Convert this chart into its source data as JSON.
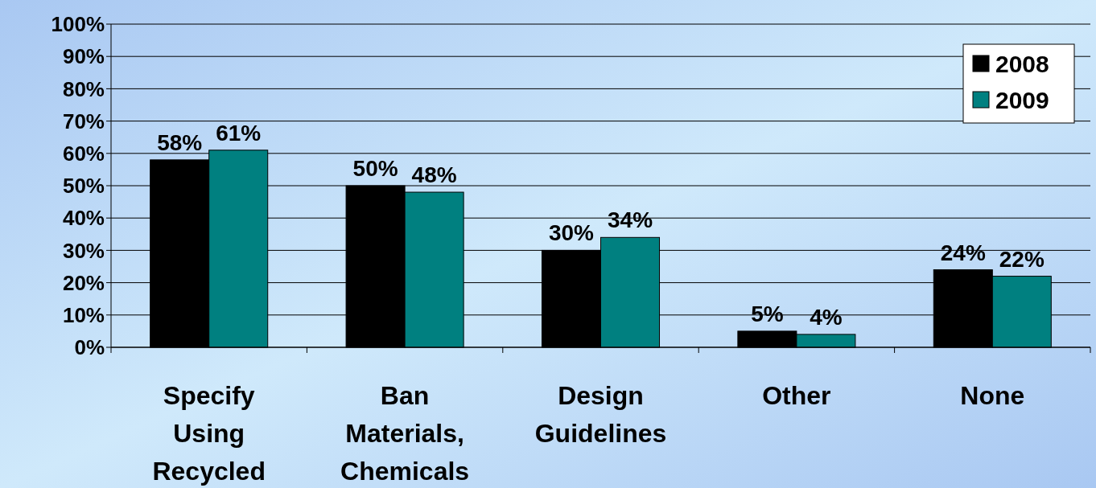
{
  "chart_data": {
    "type": "bar",
    "categories": [
      "Specify Using Recycled",
      "Ban Materials, Chemicals",
      "Design Guidelines",
      "Other",
      "None"
    ],
    "series": [
      {
        "name": "2008",
        "color": "#000000",
        "values": [
          58,
          50,
          30,
          5,
          24
        ]
      },
      {
        "name": "2009",
        "color": "#008080",
        "values": [
          61,
          48,
          34,
          4,
          22
        ]
      }
    ],
    "ylim": [
      0,
      100
    ],
    "yticks": [
      {
        "value": 0,
        "label": "0%"
      },
      {
        "value": 10,
        "label": "10%"
      },
      {
        "value": 20,
        "label": "20%"
      },
      {
        "value": 30,
        "label": "30%"
      },
      {
        "value": 40,
        "label": "40%"
      },
      {
        "value": 50,
        "label": "50%"
      },
      {
        "value": 60,
        "label": "60%"
      },
      {
        "value": 70,
        "label": "70%"
      },
      {
        "value": 80,
        "label": "80%"
      },
      {
        "value": 90,
        "label": "90%"
      },
      {
        "value": 100,
        "label": "100%"
      }
    ],
    "value_labels": [
      [
        "58%",
        "50%",
        "30%",
        "5%",
        "24%"
      ],
      [
        "61%",
        "48%",
        "34%",
        "4%",
        "22%"
      ]
    ],
    "grid": "y",
    "legend": "top right"
  }
}
